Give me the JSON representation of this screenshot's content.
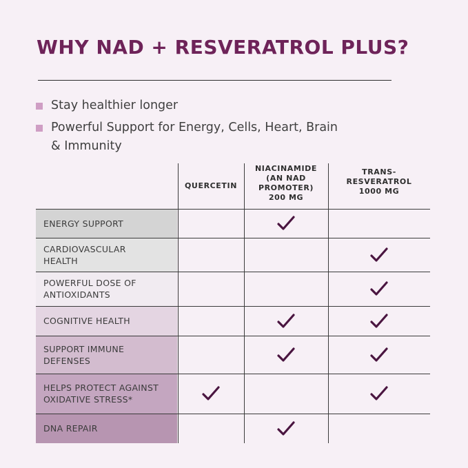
{
  "title": "WHY NAD + RESVERATROL PLUS?",
  "bullets": [
    "Stay healthier longer",
    "Powerful Support for Energy, Cells, Heart, Brain",
    "& Immunity"
  ],
  "columns": [
    "QUERCETIN",
    "NIACINAMIDE\n(AN NAD\nPROMOTER)\n200 MG",
    "TRANS-\nRESVERATROL\n1000 MG"
  ],
  "rows": [
    {
      "label": "ENERGY SUPPORT",
      "bg": "#d4d4d4",
      "checks": [
        false,
        true,
        false
      ]
    },
    {
      "label": "CARDIOVASCULAR\nHEALTH",
      "bg": "#e3e3e3",
      "checks": [
        false,
        false,
        true
      ]
    },
    {
      "label": "POWERFUL DOSE OF\nANTIOXIDANTS",
      "bg": "#f1ebf1",
      "checks": [
        false,
        false,
        true
      ]
    },
    {
      "label": "COGNITIVE HEALTH",
      "bg": "#e4d5e2",
      "checks": [
        false,
        true,
        true
      ]
    },
    {
      "label": "SUPPORT IMMUNE\nDEFENSES",
      "bg": "#d3bccf",
      "checks": [
        false,
        true,
        true
      ]
    },
    {
      "label": "HELPS PROTECT AGAINST\nOXIDATIVE STRESS*",
      "bg": "#c4a6c0",
      "checks": [
        true,
        false,
        true
      ]
    },
    {
      "label": "DNA REPAIR",
      "bg": "#b795b1",
      "checks": [
        false,
        true,
        false
      ]
    }
  ],
  "colors": {
    "title": "#6e2359",
    "check": "#4a1540",
    "bullet": "#cf9ec4",
    "background": "#f7f0f6"
  },
  "icons": {
    "check": "checkmark-icon",
    "bullet": "square-bullet-icon"
  }
}
